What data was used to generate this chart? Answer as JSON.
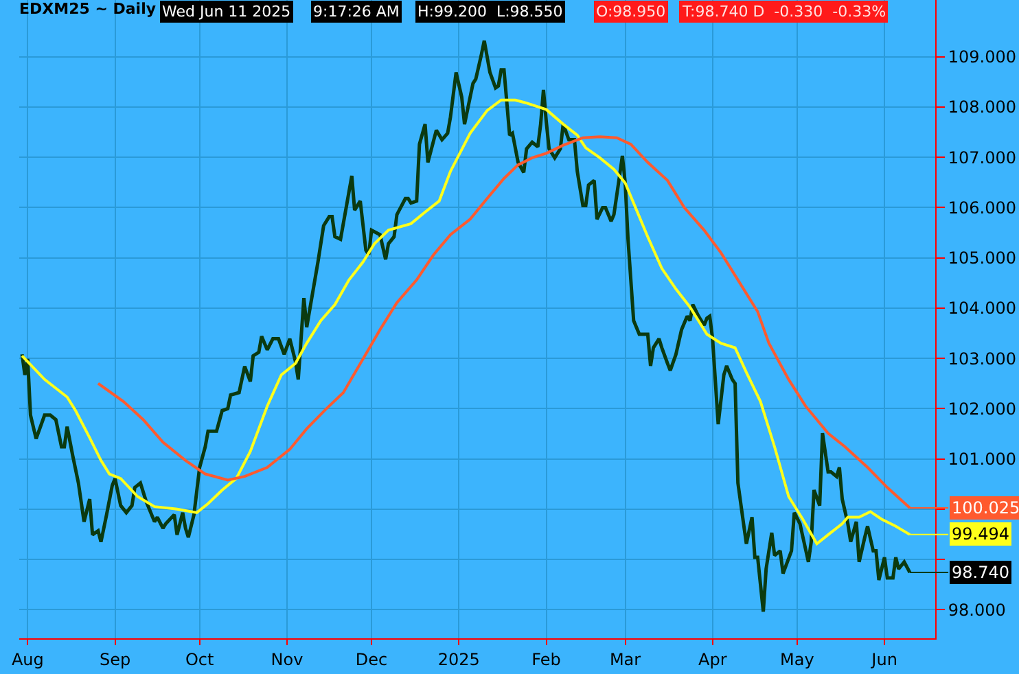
{
  "chart_data": {
    "type": "line",
    "title": "EDXM25 ~ Daily",
    "annotations": [
      "Wed Jun 11 2025",
      "9:17:26 AM",
      "H:99.200  L:98.550",
      "O:98.950",
      "T:98.740 D  -0.330  -0.33%",
      {
        "text": "100.025",
        "x": "2025-06-10",
        "y": 100.025
      },
      {
        "text": "99.494",
        "x": "2025-06-10",
        "y": 99.494
      },
      {
        "text": "98.740",
        "x": "2025-06-10",
        "y": 98.74
      }
    ],
    "series": [
      {
        "color": "#0b3a10",
        "x": [
          "2024-07-30",
          "2024-07-31",
          "2024-08-01",
          "2024-08-02",
          "2024-08-04",
          "2024-08-07",
          "2024-08-09",
          "2024-08-11",
          "2024-08-13",
          "2024-08-14",
          "2024-08-15",
          "2024-08-17",
          "2024-08-19",
          "2024-08-21",
          "2024-08-23",
          "2024-08-24",
          "2024-08-26",
          "2024-08-27",
          "2024-08-29",
          "2024-08-31",
          "2024-09-01",
          "2024-09-03",
          "2024-09-05",
          "2024-09-07",
          "2024-09-08",
          "2024-09-10",
          "2024-09-12",
          "2024-09-15",
          "2024-09-16",
          "2024-09-18",
          "2024-09-19",
          "2024-09-22",
          "2024-09-23",
          "2024-09-25",
          "2024-09-26",
          "2024-09-27",
          "2024-09-29",
          "2024-10-01",
          "2024-10-03",
          "2024-10-04",
          "2024-10-07",
          "2024-10-09",
          "2024-10-11",
          "2024-10-12",
          "2024-10-15",
          "2024-10-17",
          "2024-10-19",
          "2024-10-20",
          "2024-10-22",
          "2024-10-23",
          "2024-10-25",
          "2024-10-27",
          "2024-10-29",
          "2024-10-31",
          "2024-11-02",
          "2024-11-04",
          "2024-11-05",
          "2024-11-07",
          "2024-11-08",
          "2024-11-12",
          "2024-11-14",
          "2024-11-16",
          "2024-11-17",
          "2024-11-18",
          "2024-11-20",
          "2024-11-22",
          "2024-11-24",
          "2024-11-25",
          "2024-11-27",
          "2024-11-29",
          "2024-11-30",
          "2024-12-01",
          "2024-12-04",
          "2024-12-06",
          "2024-12-07",
          "2024-12-09",
          "2024-12-10",
          "2024-12-13",
          "2024-12-14",
          "2024-12-15",
          "2024-12-17",
          "2024-12-18",
          "2024-12-20",
          "2024-12-21",
          "2024-12-24",
          "2024-12-26",
          "2024-12-28",
          "2024-12-29",
          "2024-12-31",
          "2025-01-02",
          "2025-01-03",
          "2025-01-04",
          "2025-01-06",
          "2025-01-07",
          "2025-01-09",
          "2025-01-10",
          "2025-01-12",
          "2025-01-14",
          "2025-01-15",
          "2025-01-16",
          "2025-01-17",
          "2025-01-19",
          "2025-01-20",
          "2025-01-22",
          "2025-01-24",
          "2025-01-25",
          "2025-01-27",
          "2025-01-29",
          "2025-01-30",
          "2025-01-31",
          "2025-02-01",
          "2025-02-02",
          "2025-02-04",
          "2025-02-06",
          "2025-02-07",
          "2025-02-09",
          "2025-02-11",
          "2025-02-12",
          "2025-02-14",
          "2025-02-15",
          "2025-02-16",
          "2025-02-18",
          "2025-02-19",
          "2025-02-21",
          "2025-02-22",
          "2025-02-24",
          "2025-02-25",
          "2025-02-27",
          "2025-02-28",
          "2025-03-01",
          "2025-03-02",
          "2025-03-04",
          "2025-03-06",
          "2025-03-09",
          "2025-03-10",
          "2025-03-11",
          "2025-03-13",
          "2025-03-14",
          "2025-03-16",
          "2025-03-17",
          "2025-03-19",
          "2025-03-21",
          "2025-03-23",
          "2025-03-24",
          "2025-03-25",
          "2025-03-27",
          "2025-03-29",
          "2025-03-30",
          "2025-03-31",
          "2025-04-01",
          "2025-04-03",
          "2025-04-05",
          "2025-04-06",
          "2025-04-08",
          "2025-04-09",
          "2025-04-10",
          "2025-04-12",
          "2025-04-13",
          "2025-04-15",
          "2025-04-16",
          "2025-04-17",
          "2025-04-19",
          "2025-04-20",
          "2025-04-22",
          "2025-04-23",
          "2025-04-25",
          "2025-04-26",
          "2025-04-29",
          "2025-04-30",
          "2025-05-02",
          "2025-05-05",
          "2025-05-06",
          "2025-05-07",
          "2025-05-09",
          "2025-05-10",
          "2025-05-12",
          "2025-05-13",
          "2025-05-15",
          "2025-05-16",
          "2025-05-17",
          "2025-05-19",
          "2025-05-20",
          "2025-05-22",
          "2025-05-23",
          "2025-05-25",
          "2025-05-26",
          "2025-05-28",
          "2025-05-29",
          "2025-05-30",
          "2025-06-01",
          "2025-06-02",
          "2025-06-04",
          "2025-06-05",
          "2025-06-06",
          "2025-06-08",
          "2025-06-10"
        ],
        "values": [
          103.08,
          102.67,
          102.99,
          101.87,
          101.4,
          101.87,
          101.87,
          101.78,
          101.24,
          101.24,
          101.64,
          101.06,
          100.52,
          99.75,
          100.2,
          99.49,
          99.57,
          99.35,
          99.89,
          100.47,
          100.61,
          100.07,
          99.93,
          100.07,
          100.43,
          100.52,
          100.16,
          99.75,
          99.84,
          99.62,
          99.71,
          99.89,
          99.49,
          99.93,
          99.62,
          99.44,
          99.89,
          100.83,
          101.24,
          101.55,
          101.55,
          101.96,
          102.0,
          102.27,
          102.32,
          102.84,
          102.54,
          103.05,
          103.12,
          103.44,
          103.17,
          103.39,
          103.39,
          103.08,
          103.39,
          102.94,
          102.58,
          104.2,
          103.62,
          104.92,
          105.64,
          105.82,
          105.82,
          105.42,
          105.37,
          106.0,
          106.63,
          105.95,
          106.13,
          105.15,
          105.06,
          105.55,
          105.46,
          104.97,
          105.28,
          105.42,
          105.86,
          106.18,
          106.18,
          106.09,
          106.13,
          107.26,
          107.66,
          106.9,
          107.54,
          107.35,
          107.48,
          107.8,
          108.69,
          108.2,
          107.66,
          107.93,
          108.47,
          108.56,
          109.05,
          109.32,
          108.69,
          108.38,
          108.42,
          108.74,
          108.74,
          107.44,
          107.48,
          106.9,
          106.7,
          107.17,
          107.3,
          107.21,
          107.66,
          108.34,
          107.71,
          107.17,
          106.99,
          107.17,
          107.66,
          107.35,
          107.35,
          106.72,
          106.04,
          106.04,
          106.45,
          106.54,
          105.77,
          106.0,
          106.0,
          105.73,
          105.86,
          106.63,
          107.03,
          106.49,
          105.37,
          103.75,
          103.48,
          103.48,
          102.85,
          103.21,
          103.39,
          103.21,
          102.9,
          102.76,
          103.08,
          103.57,
          103.84,
          103.75,
          104.07,
          103.84,
          103.66,
          103.8,
          103.84,
          103.39,
          101.69,
          102.67,
          102.85,
          102.58,
          102.5,
          100.52,
          99.71,
          99.31,
          99.84,
          99.04,
          99.04,
          97.96,
          98.81,
          99.53,
          99.08,
          99.17,
          98.72,
          99.17,
          99.93,
          99.71,
          98.95,
          99.35,
          100.38,
          100.07,
          101.51,
          100.74,
          100.74,
          100.65,
          100.83,
          100.2,
          99.71,
          99.35,
          99.75,
          98.95,
          99.44,
          99.66,
          99.17,
          99.17,
          98.59,
          99.04,
          98.63,
          98.63,
          99.04,
          98.81,
          98.95,
          98.74
        ]
      },
      {
        "color": "#ffff1a",
        "x": [
          "2024-07-30",
          "2024-08-07",
          "2024-08-15",
          "2024-08-18",
          "2024-08-23",
          "2024-08-27",
          "2024-08-30",
          "2024-09-03",
          "2024-09-09",
          "2024-09-15",
          "2024-09-23",
          "2024-09-30",
          "2024-10-04",
          "2024-10-09",
          "2024-10-14",
          "2024-10-19",
          "2024-10-25",
          "2024-10-30",
          "2024-11-04",
          "2024-11-08",
          "2024-11-13",
          "2024-11-18",
          "2024-11-23",
          "2024-11-28",
          "2024-12-02",
          "2024-12-07",
          "2024-12-15",
          "2024-12-20",
          "2024-12-25",
          "2024-12-29",
          "2025-01-05",
          "2025-01-11",
          "2025-01-16",
          "2025-01-21",
          "2025-01-25",
          "2025-02-01",
          "2025-02-07",
          "2025-02-12",
          "2025-02-15",
          "2025-02-20",
          "2025-02-25",
          "2025-03-01",
          "2025-03-06",
          "2025-03-09",
          "2025-03-14",
          "2025-03-19",
          "2025-03-24",
          "2025-03-30",
          "2025-04-04",
          "2025-04-09",
          "2025-04-13",
          "2025-04-18",
          "2025-04-23",
          "2025-04-28",
          "2025-05-03",
          "2025-05-08",
          "2025-05-12",
          "2025-05-17",
          "2025-05-19",
          "2025-05-23",
          "2025-05-27",
          "2025-05-31",
          "2025-06-05",
          "2025-06-10"
        ],
        "values": [
          103.05,
          102.58,
          102.23,
          101.96,
          101.42,
          100.97,
          100.7,
          100.61,
          100.25,
          100.05,
          100.0,
          99.93,
          100.11,
          100.38,
          100.61,
          101.15,
          102.05,
          102.67,
          102.9,
          103.3,
          103.75,
          104.07,
          104.56,
          104.92,
          105.28,
          105.55,
          105.68,
          105.91,
          106.13,
          106.72,
          107.48,
          107.93,
          108.14,
          108.14,
          108.08,
          107.95,
          107.66,
          107.44,
          107.19,
          106.99,
          106.76,
          106.49,
          105.82,
          105.42,
          104.79,
          104.38,
          104.02,
          103.48,
          103.3,
          103.21,
          102.72,
          102.14,
          101.24,
          100.25,
          99.8,
          99.31,
          99.49,
          99.71,
          99.84,
          99.84,
          99.95,
          99.8,
          99.66,
          99.494
        ]
      },
      {
        "color": "#ff5a2e",
        "x": [
          "2024-08-26",
          "2024-09-04",
          "2024-09-11",
          "2024-09-18",
          "2024-09-26",
          "2024-10-03",
          "2024-10-11",
          "2024-10-17",
          "2024-10-25",
          "2024-11-02",
          "2024-11-08",
          "2024-11-15",
          "2024-11-21",
          "2024-11-28",
          "2024-12-04",
          "2024-12-10",
          "2024-12-17",
          "2024-12-23",
          "2024-12-29",
          "2025-01-05",
          "2025-01-11",
          "2025-01-17",
          "2025-01-22",
          "2025-01-27",
          "2025-02-01",
          "2025-02-07",
          "2025-02-14",
          "2025-02-20",
          "2025-02-26",
          "2025-03-03",
          "2025-03-09",
          "2025-03-16",
          "2025-03-22",
          "2025-03-29",
          "2025-04-04",
          "2025-04-10",
          "2025-04-17",
          "2025-04-21",
          "2025-04-28",
          "2025-05-04",
          "2025-05-12",
          "2025-05-18",
          "2025-05-26",
          "2025-06-02",
          "2025-06-10"
        ],
        "values": [
          102.5,
          102.14,
          101.78,
          101.33,
          100.97,
          100.7,
          100.58,
          100.65,
          100.83,
          101.19,
          101.6,
          102.0,
          102.32,
          102.99,
          103.57,
          104.11,
          104.56,
          105.06,
          105.46,
          105.77,
          106.18,
          106.58,
          106.85,
          106.99,
          107.08,
          107.24,
          107.39,
          107.41,
          107.39,
          107.26,
          106.9,
          106.54,
          106.0,
          105.55,
          105.1,
          104.56,
          103.93,
          103.3,
          102.58,
          102.05,
          101.51,
          101.24,
          100.83,
          100.43,
          100.025
        ]
      }
    ],
    "xlim": [
      "2024-07-29",
      "2025-06-19"
    ],
    "xticks": [
      {
        "value": "2024-08-01",
        "label": "Aug"
      },
      {
        "value": "2024-09-01",
        "label": "Sep"
      },
      {
        "value": "2024-10-01",
        "label": "Oct"
      },
      {
        "value": "2024-11-01",
        "label": "Nov"
      },
      {
        "value": "2024-12-01",
        "label": "Dec"
      },
      {
        "value": "2025-01-01",
        "label": "2025"
      },
      {
        "value": "2025-02-01",
        "label": "Feb"
      },
      {
        "value": "2025-03-01",
        "label": "Mar"
      },
      {
        "value": "2025-04-01",
        "label": "Apr"
      },
      {
        "value": "2025-05-01",
        "label": "May"
      },
      {
        "value": "2025-06-01",
        "label": "Jun"
      }
    ],
    "ylim": [
      97.43,
      110.13
    ],
    "yticks": [
      {
        "value": 98,
        "label": "98.000"
      },
      {
        "value": 99,
        "label": null
      },
      {
        "value": 100,
        "label": null
      },
      {
        "value": 101,
        "label": "101.000"
      },
      {
        "value": 102,
        "label": "102.000"
      },
      {
        "value": 103,
        "label": "103.000"
      },
      {
        "value": 104,
        "label": "104.000"
      },
      {
        "value": 105,
        "label": "105.000"
      },
      {
        "value": 106,
        "label": "106.000"
      },
      {
        "value": 107,
        "label": "107.000"
      },
      {
        "value": 108,
        "label": "108.000"
      },
      {
        "value": 109,
        "label": "109.000"
      }
    ],
    "grid": true,
    "legend": false,
    "marker": "none",
    "line_style": "solid"
  }
}
